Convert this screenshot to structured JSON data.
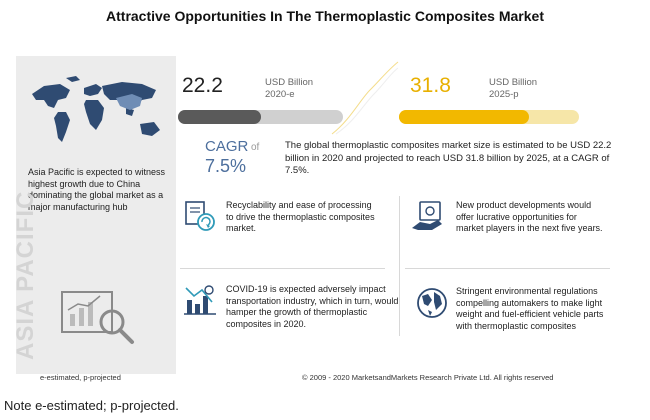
{
  "title": "Attractive Opportunities In The Thermoplastic Composites Market",
  "market": {
    "value_2020": "22.2",
    "unit_2020": "USD Billion",
    "year_2020": "2020-e",
    "value_2025": "31.8",
    "unit_2025": "USD Billion",
    "year_2025": "2025-p",
    "bar_2020_fill": 0.5,
    "bar_2025_fill": 0.72
  },
  "cagr": {
    "label": "CAGR",
    "of": "of",
    "value": "7.5%"
  },
  "summary": "The global thermoplastic composites market size is estimated to be USD 22.2 billion in 2020 and projected to reach USD 31.8 billion by 2025, at a CAGR of 7.5%.",
  "asia_pacific": {
    "text": "Asia Pacific is expected to witness highest growth due to China dominating the global market as a major manufacturing hub",
    "vertical_label": "ASIA PACIFIC"
  },
  "findings": [
    {
      "icon": "recycle-icon",
      "text": "Recyclability and ease of processing to drive the thermoplastic composites market."
    },
    {
      "icon": "money-hand-icon",
      "text": "New product developments would offer lucrative opportunities for market players in the next five years."
    },
    {
      "icon": "decline-chart-icon",
      "text": "COVID-19 is expected adversely impact transportation industry, which in turn, would hamper the growth of thermoplastic composites in 2020."
    },
    {
      "icon": "globe-icon",
      "text": "Stringent environmental regulations compelling automakers to make light weight and fuel-efficient vehicle parts with thermoplastic composites"
    }
  ],
  "footer": {
    "legend": "e-estimated, p-projected",
    "copyright": "© 2009 - 2020 MarketsandMarkets Research Private Ltd. All rights reserved"
  },
  "note": "Note e-estimated; p-projected.",
  "colors": {
    "accent_blue": "#4d6f9d",
    "accent_yellow": "#f2b800",
    "bar_dark": "#5a5a5a"
  }
}
